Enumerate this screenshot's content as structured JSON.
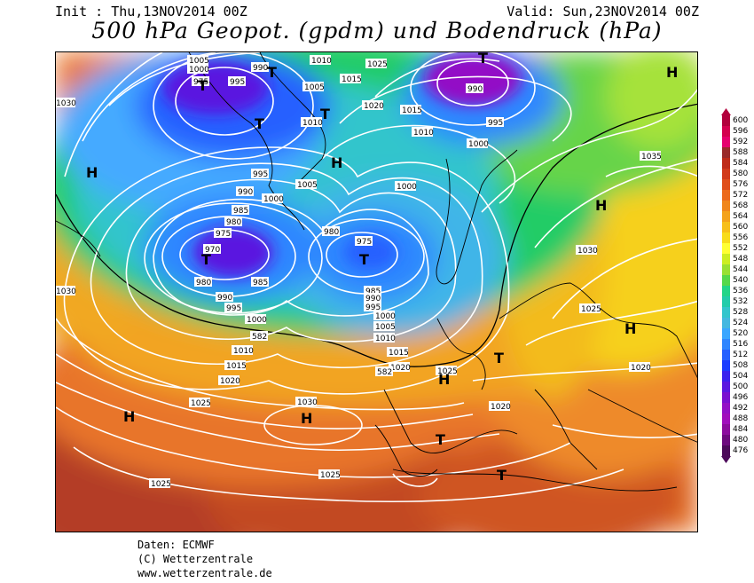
{
  "header": {
    "init": "Init : Thu,13NOV2014 00Z",
    "valid": "Valid: Sun,23NOV2014 00Z",
    "title": "500 hPa Geopot. (gpdm) und Bodendruck (hPa)"
  },
  "footer": {
    "line1": "Daten: ECMWF",
    "line2": "(C) Wetterzentrale",
    "line3": "www.wetterzentrale.de"
  },
  "legend": {
    "values": [
      "600",
      "596",
      "592",
      "588",
      "584",
      "580",
      "576",
      "572",
      "568",
      "564",
      "560",
      "556",
      "552",
      "548",
      "544",
      "540",
      "536",
      "532",
      "528",
      "524",
      "520",
      "516",
      "512",
      "508",
      "504",
      "500",
      "496",
      "492",
      "488",
      "484",
      "480",
      "476"
    ],
    "colors": [
      "#b2003c",
      "#d4004f",
      "#e6006e",
      "#9a2a2a",
      "#bf2b19",
      "#d23a1a",
      "#e04e1b",
      "#ec6a1c",
      "#f0861b",
      "#f4a21b",
      "#f7bf1a",
      "#f8dc1b",
      "#ffff33",
      "#ccee22",
      "#99e033",
      "#55d84b",
      "#22d588",
      "#22ccaa",
      "#33c5cc",
      "#44b8e0",
      "#3aa6ff",
      "#2f86ff",
      "#2560ff",
      "#1b3cff",
      "#3a22ee",
      "#5a18e0",
      "#7a10d0",
      "#9310c6",
      "#a10ebc",
      "#8c0c9e",
      "#6d0a7e",
      "#4c0a5a"
    ]
  },
  "map_labels": {
    "isobars": [
      "1005",
      "1000",
      "995",
      "975",
      "990",
      "1010",
      "1005",
      "1015",
      "1025",
      "1020",
      "1015",
      "990",
      "995",
      "1030",
      "1010",
      "1010",
      "1000",
      "995",
      "990",
      "1005",
      "1000",
      "1000",
      "985",
      "980",
      "975",
      "970",
      "980",
      "975",
      "985",
      "980",
      "990",
      "985",
      "995",
      "1000",
      "582",
      "1010",
      "1015",
      "1020",
      "1025",
      "1030",
      "985",
      "990",
      "995",
      "1000",
      "1005",
      "1010",
      "1015",
      "1020",
      "582",
      "1025",
      "1020",
      "1030",
      "1035",
      "1025",
      "1020",
      "1025",
      "1025",
      "1030"
    ],
    "highs": [
      "H",
      "H",
      "H",
      "H",
      "H",
      "H",
      "H",
      "H"
    ],
    "lows": [
      "T",
      "T",
      "T",
      "T",
      "T",
      "T",
      "T",
      "T",
      "T",
      "T"
    ]
  }
}
